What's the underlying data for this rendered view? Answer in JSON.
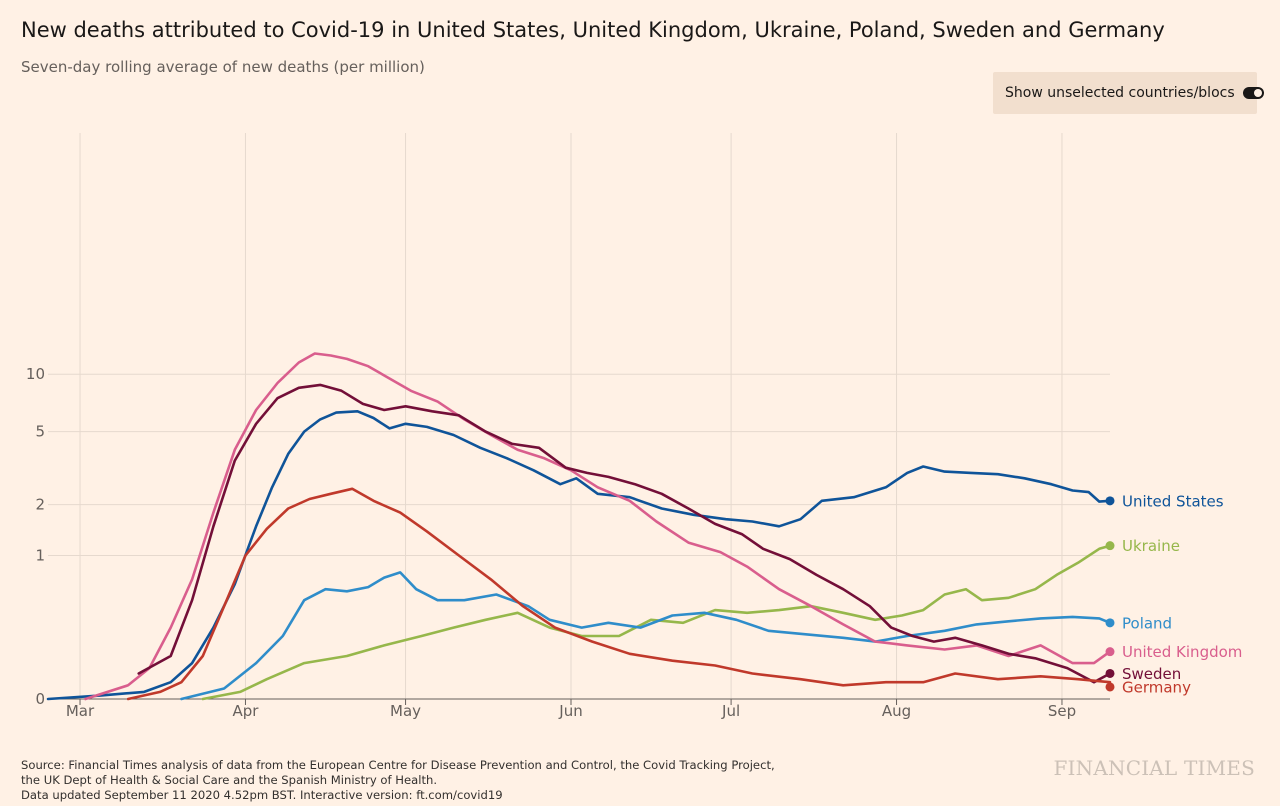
{
  "header": {
    "title": "New deaths attributed to Covid-19 in United States, United Kingdom, Ukraine, Poland, Sweden and Germany",
    "subtitle": "Seven-day rolling average of new deaths (per million)"
  },
  "toggle": {
    "label": "Show unselected countries/blocs",
    "state": "on"
  },
  "footer": {
    "source_lines": [
      "Source: Financial Times analysis of data from the European Centre for Disease Prevention and Control, the Covid Tracking Project,",
      "the UK Dept of Health & Social Care and the Spanish Ministry of Health.",
      "Data updated September 11 2020 4.52pm BST. Interactive version: ft.com/covid19"
    ],
    "brand": "FINANCIAL TIMES"
  },
  "chart_data": {
    "type": "line",
    "scale": "log (symlog, 0 at baseline)",
    "x_type": "date",
    "x_range": [
      "2020-02-24",
      "2020-09-10"
    ],
    "x_ticks": [
      {
        "label": "Mar",
        "date": "2020-03-01"
      },
      {
        "label": "Apr",
        "date": "2020-04-01"
      },
      {
        "label": "May",
        "date": "2020-05-01"
      },
      {
        "label": "Jun",
        "date": "2020-06-01"
      },
      {
        "label": "Jul",
        "date": "2020-07-01"
      },
      {
        "label": "Aug",
        "date": "2020-08-01"
      },
      {
        "label": "Sep",
        "date": "2020-09-01"
      }
    ],
    "y_ticks": [
      {
        "label": "0",
        "value": 0
      },
      {
        "label": "1",
        "value": 1
      },
      {
        "label": "2",
        "value": 2
      },
      {
        "label": "5",
        "value": 5
      },
      {
        "label": "10",
        "value": 10
      }
    ],
    "grid": true,
    "legend": "direct labels at line ends",
    "series": [
      {
        "name": "United States",
        "color": "#0f5499",
        "points": [
          [
            "2020-02-24",
            0
          ],
          [
            "2020-03-05",
            0.01
          ],
          [
            "2020-03-13",
            0.02
          ],
          [
            "2020-03-18",
            0.05
          ],
          [
            "2020-03-22",
            0.12
          ],
          [
            "2020-03-26",
            0.3
          ],
          [
            "2020-03-30",
            0.65
          ],
          [
            "2020-04-03",
            1.5
          ],
          [
            "2020-04-06",
            2.5
          ],
          [
            "2020-04-09",
            3.8
          ],
          [
            "2020-04-12",
            5.0
          ],
          [
            "2020-04-15",
            5.8
          ],
          [
            "2020-04-18",
            6.3
          ],
          [
            "2020-04-22",
            6.4
          ],
          [
            "2020-04-25",
            5.9
          ],
          [
            "2020-04-28",
            5.2
          ],
          [
            "2020-05-01",
            5.5
          ],
          [
            "2020-05-05",
            5.3
          ],
          [
            "2020-05-10",
            4.8
          ],
          [
            "2020-05-15",
            4.1
          ],
          [
            "2020-05-20",
            3.6
          ],
          [
            "2020-05-25",
            3.1
          ],
          [
            "2020-05-30",
            2.6
          ],
          [
            "2020-06-02",
            2.8
          ],
          [
            "2020-06-06",
            2.3
          ],
          [
            "2020-06-12",
            2.2
          ],
          [
            "2020-06-18",
            1.9
          ],
          [
            "2020-06-24",
            1.75
          ],
          [
            "2020-06-30",
            1.65
          ],
          [
            "2020-07-05",
            1.6
          ],
          [
            "2020-07-10",
            1.5
          ],
          [
            "2020-07-14",
            1.65
          ],
          [
            "2020-07-18",
            2.1
          ],
          [
            "2020-07-24",
            2.2
          ],
          [
            "2020-07-30",
            2.5
          ],
          [
            "2020-08-03",
            3.0
          ],
          [
            "2020-08-06",
            3.25
          ],
          [
            "2020-08-10",
            3.05
          ],
          [
            "2020-08-15",
            3.0
          ],
          [
            "2020-08-20",
            2.95
          ],
          [
            "2020-08-25",
            2.8
          ],
          [
            "2020-08-30",
            2.6
          ],
          [
            "2020-09-03",
            2.4
          ],
          [
            "2020-09-06",
            2.35
          ],
          [
            "2020-09-08",
            2.08
          ],
          [
            "2020-09-10",
            2.1
          ]
        ]
      },
      {
        "name": "Ukraine",
        "color": "#96b74b",
        "points": [
          [
            "2020-03-24",
            0
          ],
          [
            "2020-03-31",
            0.02
          ],
          [
            "2020-04-05",
            0.06
          ],
          [
            "2020-04-12",
            0.12
          ],
          [
            "2020-04-20",
            0.15
          ],
          [
            "2020-04-27",
            0.2
          ],
          [
            "2020-05-04",
            0.25
          ],
          [
            "2020-05-10",
            0.3
          ],
          [
            "2020-05-16",
            0.35
          ],
          [
            "2020-05-22",
            0.4
          ],
          [
            "2020-05-28",
            0.3
          ],
          [
            "2020-06-03",
            0.25
          ],
          [
            "2020-06-10",
            0.25
          ],
          [
            "2020-06-16",
            0.35
          ],
          [
            "2020-06-22",
            0.33
          ],
          [
            "2020-06-28",
            0.42
          ],
          [
            "2020-07-04",
            0.4
          ],
          [
            "2020-07-10",
            0.42
          ],
          [
            "2020-07-16",
            0.45
          ],
          [
            "2020-07-22",
            0.4
          ],
          [
            "2020-07-28",
            0.35
          ],
          [
            "2020-08-02",
            0.38
          ],
          [
            "2020-08-06",
            0.42
          ],
          [
            "2020-08-10",
            0.55
          ],
          [
            "2020-08-14",
            0.6
          ],
          [
            "2020-08-17",
            0.5
          ],
          [
            "2020-08-22",
            0.52
          ],
          [
            "2020-08-27",
            0.6
          ],
          [
            "2020-08-31",
            0.75
          ],
          [
            "2020-09-04",
            0.9
          ],
          [
            "2020-09-08",
            1.1
          ],
          [
            "2020-09-10",
            1.15
          ]
        ]
      },
      {
        "name": "Poland",
        "color": "#2f8dca",
        "points": [
          [
            "2020-03-20",
            0
          ],
          [
            "2020-03-28",
            0.03
          ],
          [
            "2020-04-03",
            0.12
          ],
          [
            "2020-04-08",
            0.25
          ],
          [
            "2020-04-12",
            0.5
          ],
          [
            "2020-04-16",
            0.6
          ],
          [
            "2020-04-20",
            0.58
          ],
          [
            "2020-04-24",
            0.62
          ],
          [
            "2020-04-27",
            0.72
          ],
          [
            "2020-04-30",
            0.78
          ],
          [
            "2020-05-03",
            0.6
          ],
          [
            "2020-05-07",
            0.5
          ],
          [
            "2020-05-12",
            0.5
          ],
          [
            "2020-05-18",
            0.55
          ],
          [
            "2020-05-24",
            0.45
          ],
          [
            "2020-05-28",
            0.35
          ],
          [
            "2020-06-03",
            0.3
          ],
          [
            "2020-06-08",
            0.33
          ],
          [
            "2020-06-14",
            0.3
          ],
          [
            "2020-06-20",
            0.38
          ],
          [
            "2020-06-26",
            0.4
          ],
          [
            "2020-07-02",
            0.35
          ],
          [
            "2020-07-08",
            0.28
          ],
          [
            "2020-07-15",
            0.26
          ],
          [
            "2020-07-22",
            0.24
          ],
          [
            "2020-07-28",
            0.22
          ],
          [
            "2020-08-03",
            0.25
          ],
          [
            "2020-08-10",
            0.28
          ],
          [
            "2020-08-16",
            0.32
          ],
          [
            "2020-08-22",
            0.34
          ],
          [
            "2020-08-28",
            0.36
          ],
          [
            "2020-09-03",
            0.37
          ],
          [
            "2020-09-08",
            0.36
          ],
          [
            "2020-09-10",
            0.33
          ]
        ]
      },
      {
        "name": "United Kingdom",
        "color": "#d95e8d",
        "points": [
          [
            "2020-03-02",
            0
          ],
          [
            "2020-03-10",
            0.04
          ],
          [
            "2020-03-14",
            0.1
          ],
          [
            "2020-03-18",
            0.3
          ],
          [
            "2020-03-22",
            0.7
          ],
          [
            "2020-03-26",
            1.8
          ],
          [
            "2020-03-30",
            4.0
          ],
          [
            "2020-04-03",
            6.5
          ],
          [
            "2020-04-07",
            9.0
          ],
          [
            "2020-04-11",
            11.5
          ],
          [
            "2020-04-14",
            12.8
          ],
          [
            "2020-04-17",
            12.5
          ],
          [
            "2020-04-20",
            12.0
          ],
          [
            "2020-04-24",
            11.0
          ],
          [
            "2020-04-28",
            9.5
          ],
          [
            "2020-05-02",
            8.2
          ],
          [
            "2020-05-07",
            7.2
          ],
          [
            "2020-05-12",
            5.8
          ],
          [
            "2020-05-17",
            4.8
          ],
          [
            "2020-05-22",
            4.0
          ],
          [
            "2020-05-27",
            3.6
          ],
          [
            "2020-06-01",
            3.1
          ],
          [
            "2020-06-06",
            2.5
          ],
          [
            "2020-06-12",
            2.1
          ],
          [
            "2020-06-17",
            1.6
          ],
          [
            "2020-06-23",
            1.2
          ],
          [
            "2020-06-29",
            1.05
          ],
          [
            "2020-07-04",
            0.85
          ],
          [
            "2020-07-10",
            0.6
          ],
          [
            "2020-07-16",
            0.45
          ],
          [
            "2020-07-22",
            0.32
          ],
          [
            "2020-07-28",
            0.22
          ],
          [
            "2020-08-03",
            0.2
          ],
          [
            "2020-08-10",
            0.18
          ],
          [
            "2020-08-16",
            0.2
          ],
          [
            "2020-08-22",
            0.15
          ],
          [
            "2020-08-28",
            0.2
          ],
          [
            "2020-09-03",
            0.12
          ],
          [
            "2020-09-07",
            0.12
          ],
          [
            "2020-09-10",
            0.17
          ]
        ]
      },
      {
        "name": "Sweden",
        "color": "#730f38",
        "points": [
          [
            "2020-03-12",
            0.08
          ],
          [
            "2020-03-18",
            0.15
          ],
          [
            "2020-03-22",
            0.5
          ],
          [
            "2020-03-26",
            1.5
          ],
          [
            "2020-03-30",
            3.5
          ],
          [
            "2020-04-03",
            5.5
          ],
          [
            "2020-04-07",
            7.5
          ],
          [
            "2020-04-11",
            8.5
          ],
          [
            "2020-04-15",
            8.8
          ],
          [
            "2020-04-19",
            8.2
          ],
          [
            "2020-04-23",
            7.0
          ],
          [
            "2020-04-27",
            6.5
          ],
          [
            "2020-05-01",
            6.8
          ],
          [
            "2020-05-06",
            6.4
          ],
          [
            "2020-05-11",
            6.1
          ],
          [
            "2020-05-16",
            5.0
          ],
          [
            "2020-05-21",
            4.3
          ],
          [
            "2020-05-26",
            4.1
          ],
          [
            "2020-05-31",
            3.2
          ],
          [
            "2020-06-04",
            3.0
          ],
          [
            "2020-06-08",
            2.85
          ],
          [
            "2020-06-13",
            2.6
          ],
          [
            "2020-06-18",
            2.3
          ],
          [
            "2020-06-23",
            1.9
          ],
          [
            "2020-06-28",
            1.55
          ],
          [
            "2020-07-03",
            1.35
          ],
          [
            "2020-07-07",
            1.1
          ],
          [
            "2020-07-12",
            0.95
          ],
          [
            "2020-07-17",
            0.75
          ],
          [
            "2020-07-22",
            0.6
          ],
          [
            "2020-07-27",
            0.45
          ],
          [
            "2020-07-31",
            0.3
          ],
          [
            "2020-08-04",
            0.25
          ],
          [
            "2020-08-08",
            0.22
          ],
          [
            "2020-08-12",
            0.24
          ],
          [
            "2020-08-17",
            0.2
          ],
          [
            "2020-08-22",
            0.16
          ],
          [
            "2020-08-27",
            0.14
          ],
          [
            "2020-09-02",
            0.1
          ],
          [
            "2020-09-07",
            0.05
          ],
          [
            "2020-09-10",
            0.08
          ]
        ]
      },
      {
        "name": "Germany",
        "color": "#c0392b",
        "points": [
          [
            "2020-03-10",
            0
          ],
          [
            "2020-03-16",
            0.02
          ],
          [
            "2020-03-20",
            0.05
          ],
          [
            "2020-03-24",
            0.15
          ],
          [
            "2020-03-28",
            0.45
          ],
          [
            "2020-04-01",
            1.0
          ],
          [
            "2020-04-05",
            1.45
          ],
          [
            "2020-04-09",
            1.9
          ],
          [
            "2020-04-13",
            2.15
          ],
          [
            "2020-04-17",
            2.3
          ],
          [
            "2020-04-21",
            2.45
          ],
          [
            "2020-04-25",
            2.1
          ],
          [
            "2020-04-30",
            1.8
          ],
          [
            "2020-05-05",
            1.4
          ],
          [
            "2020-05-11",
            1.0
          ],
          [
            "2020-05-17",
            0.7
          ],
          [
            "2020-05-23",
            0.45
          ],
          [
            "2020-05-29",
            0.3
          ],
          [
            "2020-06-05",
            0.22
          ],
          [
            "2020-06-12",
            0.16
          ],
          [
            "2020-06-20",
            0.13
          ],
          [
            "2020-06-28",
            0.11
          ],
          [
            "2020-07-05",
            0.08
          ],
          [
            "2020-07-14",
            0.06
          ],
          [
            "2020-07-22",
            0.04
          ],
          [
            "2020-07-30",
            0.05
          ],
          [
            "2020-08-06",
            0.05
          ],
          [
            "2020-08-12",
            0.08
          ],
          [
            "2020-08-20",
            0.06
          ],
          [
            "2020-08-28",
            0.07
          ],
          [
            "2020-09-04",
            0.06
          ],
          [
            "2020-09-10",
            0.05
          ]
        ]
      }
    ]
  }
}
